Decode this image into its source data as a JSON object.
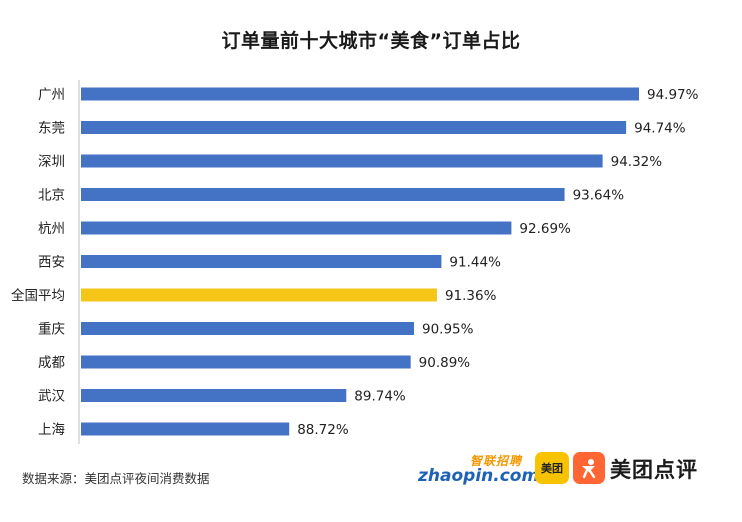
{
  "chart_data": {
    "type": "bar",
    "orientation": "horizontal",
    "title": "订单量前十大城市“美食”订单占比",
    "categories": [
      "广州",
      "东莞",
      "深圳",
      "北京",
      "杭州",
      "西安",
      "全国平均",
      "重庆",
      "成都",
      "武汉",
      "上海"
    ],
    "values": [
      94.97,
      94.74,
      94.32,
      93.64,
      92.69,
      91.44,
      91.36,
      90.95,
      90.89,
      89.74,
      88.72
    ],
    "value_labels": [
      "94.97%",
      "94.74%",
      "94.32%",
      "93.64%",
      "92.69%",
      "91.44%",
      "91.36%",
      "90.95%",
      "90.89%",
      "89.74%",
      "88.72%"
    ],
    "highlight_category": "全国平均",
    "xlim": [
      85,
      96
    ],
    "xlabel": "",
    "ylabel": "",
    "grid": false,
    "legend": "none"
  },
  "colors": {
    "bar": "#4472c4",
    "highlight": "#f5c518",
    "axis": "#bfbfbf",
    "text": "#222222"
  },
  "source": "数据来源：美团点评夜间消费数据",
  "logos": {
    "zhaopin_cn": "智联招聘",
    "zhaopin_en": "zhaopin.com",
    "meituan": "美团",
    "dianping": "美团点评"
  }
}
